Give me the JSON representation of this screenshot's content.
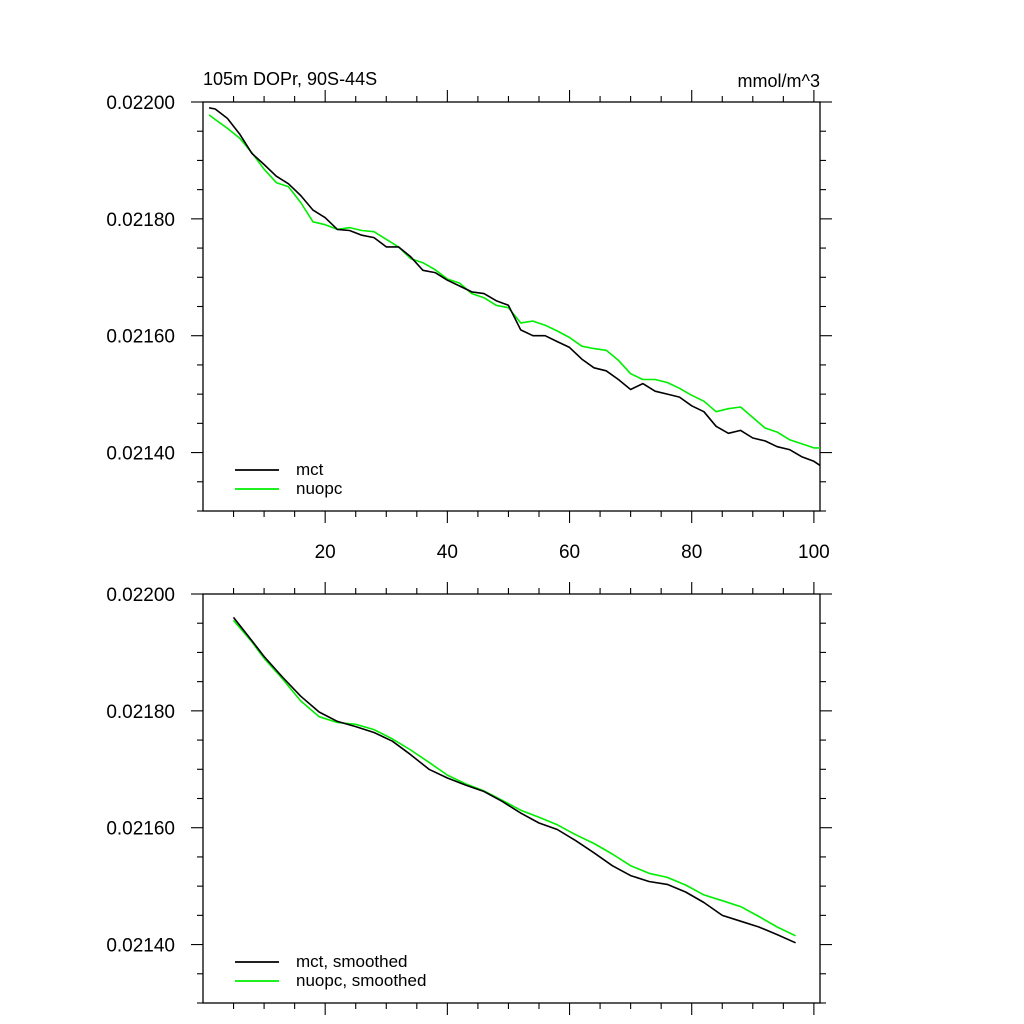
{
  "chart_data": [
    {
      "type": "line",
      "title": "105m DOPr, 90S-44S",
      "units": "mmol/m^3",
      "xlabel": "",
      "ylabel": "",
      "xlim": [
        0,
        101
      ],
      "ylim": [
        0.0213,
        0.022
      ],
      "y_tick_labels": [
        "0.02140",
        "0.02160",
        "0.02180",
        "0.02200"
      ],
      "x_tick_labels": [
        "20",
        "40",
        "60",
        "80",
        "100"
      ],
      "legend_position": "bottom-left",
      "series": [
        {
          "name": "mct",
          "color": "#000000",
          "x": [
            1,
            2,
            4,
            6,
            8,
            10,
            12,
            14,
            16,
            18,
            20,
            22,
            24,
            26,
            28,
            30,
            32,
            34,
            36,
            38,
            40,
            42,
            44,
            46,
            48,
            50,
            52,
            54,
            56,
            58,
            60,
            62,
            64,
            66,
            68,
            70,
            72,
            74,
            76,
            78,
            80,
            82,
            84,
            86,
            88,
            90,
            92,
            94,
            96,
            98,
            100,
            101
          ],
          "values": [
            0.02199,
            0.021988,
            0.021972,
            0.021945,
            0.021912,
            0.021893,
            0.021873,
            0.02186,
            0.02184,
            0.021815,
            0.021802,
            0.021782,
            0.02178,
            0.021772,
            0.021768,
            0.021752,
            0.021752,
            0.021735,
            0.021712,
            0.021708,
            0.021695,
            0.021685,
            0.021675,
            0.021672,
            0.02166,
            0.021652,
            0.02161,
            0.0216,
            0.0216,
            0.02159,
            0.02158,
            0.02156,
            0.021545,
            0.02154,
            0.021525,
            0.021508,
            0.021518,
            0.021505,
            0.0215,
            0.021495,
            0.02148,
            0.02147,
            0.021445,
            0.021433,
            0.021438,
            0.021425,
            0.02142,
            0.02141,
            0.021405,
            0.021393,
            0.021385,
            0.021378
          ]
        },
        {
          "name": "nuopc",
          "color": "#00ee00",
          "x": [
            1,
            2,
            4,
            6,
            8,
            10,
            12,
            14,
            16,
            18,
            20,
            22,
            24,
            26,
            28,
            30,
            32,
            34,
            36,
            38,
            40,
            42,
            44,
            46,
            48,
            50,
            52,
            54,
            56,
            58,
            60,
            62,
            64,
            66,
            68,
            70,
            72,
            74,
            76,
            78,
            80,
            82,
            84,
            86,
            88,
            90,
            92,
            94,
            96,
            98,
            100,
            101
          ],
          "values": [
            0.021978,
            0.02197,
            0.021955,
            0.021938,
            0.021913,
            0.021885,
            0.021862,
            0.021855,
            0.021828,
            0.021795,
            0.02179,
            0.021782,
            0.021785,
            0.02178,
            0.021778,
            0.021765,
            0.021752,
            0.021732,
            0.021725,
            0.021713,
            0.021697,
            0.02169,
            0.021672,
            0.021665,
            0.021652,
            0.021648,
            0.021622,
            0.021625,
            0.021618,
            0.021608,
            0.021597,
            0.021582,
            0.021578,
            0.021575,
            0.021558,
            0.021535,
            0.021525,
            0.021525,
            0.02152,
            0.02151,
            0.021498,
            0.021488,
            0.02147,
            0.021475,
            0.021478,
            0.02146,
            0.021442,
            0.021435,
            0.021422,
            0.021415,
            0.021408,
            0.021408
          ]
        }
      ]
    },
    {
      "type": "line",
      "title": "",
      "xlabel": "",
      "ylabel": "",
      "xlim": [
        0,
        101
      ],
      "ylim": [
        0.0213,
        0.022
      ],
      "y_tick_labels": [
        "0.02140",
        "0.02160",
        "0.02180",
        "0.02200"
      ],
      "x_tick_labels": [],
      "legend_position": "bottom-left",
      "series": [
        {
          "name": "mct, smoothed",
          "color": "#000000",
          "x": [
            5,
            8,
            10,
            13,
            16,
            19,
            22,
            25,
            28,
            31,
            34,
            37,
            40,
            43,
            46,
            49,
            52,
            55,
            58,
            61,
            64,
            67,
            70,
            73,
            76,
            79,
            82,
            85,
            88,
            91,
            94,
            97
          ],
          "values": [
            0.02196,
            0.02192,
            0.021893,
            0.021858,
            0.021825,
            0.021798,
            0.021782,
            0.021773,
            0.021763,
            0.021748,
            0.021725,
            0.0217,
            0.021685,
            0.021673,
            0.021662,
            0.021645,
            0.021625,
            0.021608,
            0.021597,
            0.021578,
            0.021557,
            0.021535,
            0.021518,
            0.021508,
            0.021503,
            0.02149,
            0.021472,
            0.02145,
            0.02144,
            0.02143,
            0.021417,
            0.021403
          ]
        },
        {
          "name": "nuopc, smoothed",
          "color": "#00ee00",
          "x": [
            5,
            8,
            10,
            13,
            16,
            19,
            22,
            25,
            28,
            31,
            34,
            37,
            40,
            43,
            46,
            49,
            52,
            55,
            58,
            61,
            64,
            67,
            70,
            73,
            76,
            79,
            82,
            85,
            88,
            91,
            94,
            97
          ],
          "values": [
            0.021955,
            0.021918,
            0.02189,
            0.021855,
            0.021817,
            0.02179,
            0.02178,
            0.021777,
            0.021768,
            0.021752,
            0.021733,
            0.021712,
            0.02169,
            0.021675,
            0.021663,
            0.021647,
            0.02163,
            0.021618,
            0.021605,
            0.021588,
            0.021573,
            0.021555,
            0.021535,
            0.021522,
            0.021515,
            0.021502,
            0.021485,
            0.021475,
            0.021465,
            0.021448,
            0.02143,
            0.021415
          ]
        }
      ]
    }
  ]
}
